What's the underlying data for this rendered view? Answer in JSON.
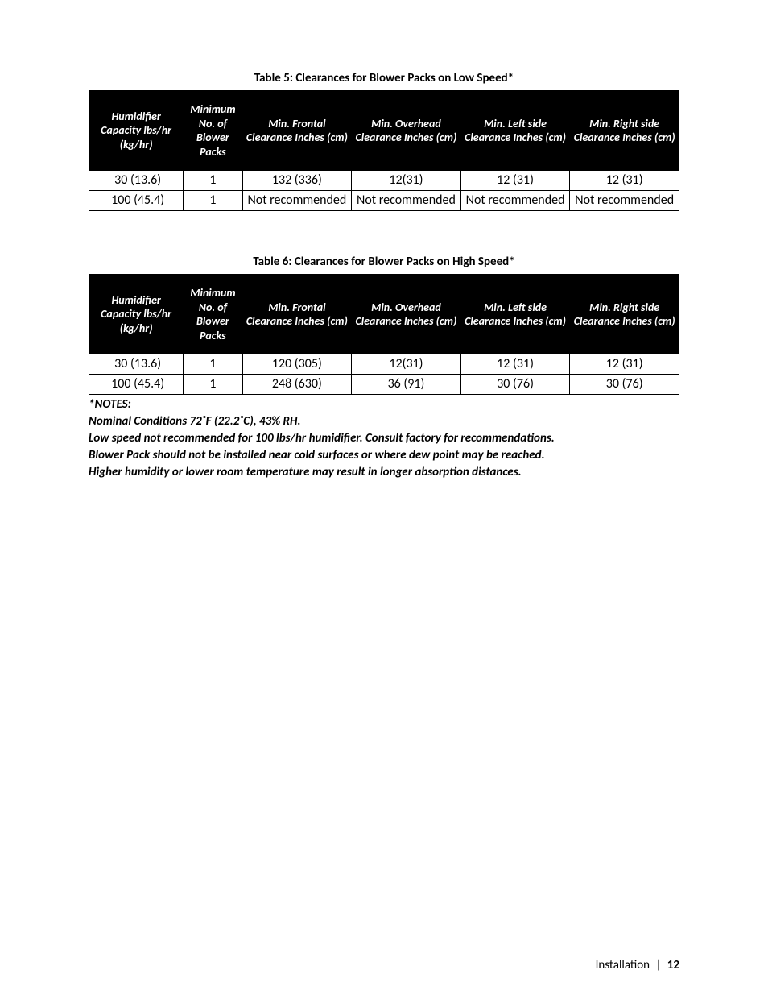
{
  "colors": {
    "page_bg": "#ffffff",
    "text": "#000000",
    "header_bg": "#000000",
    "header_fg": "#ffffff",
    "border": "#000000"
  },
  "typography": {
    "body_family": "Calibri, Segoe UI, Arial, sans-serif",
    "caption_fontsize_pt": 11,
    "header_fontsize_pt": 10.5,
    "cell_fontsize_pt": 12,
    "notes_fontsize_pt": 11,
    "footer_fontsize_pt": 11
  },
  "table5": {
    "type": "table",
    "caption": "Table 5:  Clearances for Blower Packs on Low Speed*",
    "col_widths_pct": [
      16,
      10,
      18.5,
      18.5,
      18.5,
      18.5
    ],
    "columns": [
      "Humidifier Capacity lbs/hr (kg/hr)",
      "Minimum No. of Blower Packs",
      "Min. Frontal Clearance Inches (cm)",
      "Min. Overhead Clearance Inches (cm)",
      "Min. Left side Clearance Inches (cm)",
      "Min. Right side Clearance Inches (cm)"
    ],
    "rows": [
      [
        "30 (13.6)",
        "1",
        "132 (336)",
        "12(31)",
        "12 (31)",
        "12 (31)"
      ],
      [
        "100 (45.4)",
        "1",
        "Not recommended",
        "Not recommended",
        "Not recommended",
        "Not recommended"
      ]
    ]
  },
  "table6": {
    "type": "table",
    "caption": "Table 6: Clearances for Blower Packs on High Speed*",
    "col_widths_pct": [
      16,
      10,
      18.5,
      18.5,
      18.5,
      18.5
    ],
    "columns": [
      "Humidifier Capacity lbs/hr (kg/hr)",
      "Minimum No. of Blower Packs",
      "Min. Frontal Clearance Inches (cm)",
      "Min. Overhead Clearance Inches (cm)",
      "Min. Left side Clearance Inches (cm)",
      "Min. Right side Clearance Inches (cm)"
    ],
    "rows": [
      [
        "30 (13.6)",
        "1",
        "120 (305)",
        "12(31)",
        "12 (31)",
        "12 (31)"
      ],
      [
        "100 (45.4)",
        "1",
        "248 (630)",
        "36 (91)",
        "30 (76)",
        "30 (76)"
      ]
    ]
  },
  "notes": {
    "heading": "*NOTES:",
    "lines": [
      "Nominal Conditions 72˚F (22.2˚C), 43% RH.",
      "Low speed not recommended for 100 lbs/hr humidifier. Consult factory for recommendations.",
      "Blower Pack should not be installed near cold surfaces or where dew point may be reached.",
      "Higher humidity or lower room temperature may result in longer absorption distances."
    ]
  },
  "footer": {
    "section": "Installation",
    "separator": "|",
    "page_number": "12"
  }
}
